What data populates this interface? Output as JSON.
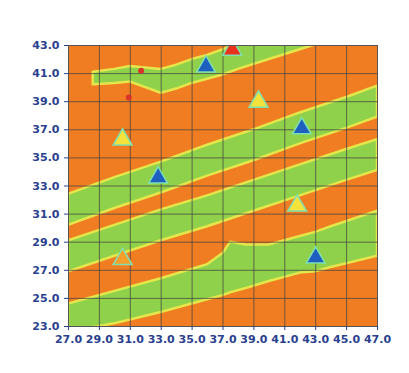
{
  "chart_data": {
    "type": "map",
    "color": "#f07d22",
    "grid": true,
    "xlim": [
      27,
      47
    ],
    "ylim": [
      23,
      43
    ],
    "xticks": [
      {
        "value": 27,
        "label": "27.0"
      },
      {
        "value": 29,
        "label": "29.0"
      },
      {
        "value": 31,
        "label": "31.0"
      },
      {
        "value": 33,
        "label": "33.0"
      },
      {
        "value": 35,
        "label": "35.0"
      },
      {
        "value": 37,
        "label": "37.0"
      },
      {
        "value": 39,
        "label": "39.0"
      },
      {
        "value": 41,
        "label": "41.0"
      },
      {
        "value": 43,
        "label": "43.0"
      },
      {
        "value": 45,
        "label": "45.0"
      },
      {
        "value": 47,
        "label": "47.0"
      }
    ],
    "yticks": [
      {
        "value": 23,
        "label": "23.0"
      },
      {
        "value": 25,
        "label": "25.0"
      },
      {
        "value": 27,
        "label": "27.0"
      },
      {
        "value": 29,
        "label": "29.0"
      },
      {
        "value": 31,
        "label": "31.0"
      },
      {
        "value": 33,
        "label": "33.0"
      },
      {
        "value": 35,
        "label": "35.0"
      },
      {
        "value": 37,
        "label": "37.0"
      },
      {
        "value": 39,
        "label": "39.0"
      },
      {
        "value": 41,
        "label": "41.0"
      },
      {
        "value": 43,
        "label": "43.0"
      }
    ],
    "series": [
      {
        "type": "area",
        "color": "#8fd14a",
        "x": [
          28.6,
          30,
          31,
          32,
          33,
          34,
          35,
          36,
          37,
          38,
          40,
          42,
          44
        ],
        "y_low": [
          40.2,
          40.3,
          40.4,
          40.0,
          39.6,
          39.9,
          40.3,
          40.6,
          40.9,
          41.3,
          42.0,
          42.7,
          43.4
        ],
        "y_high": [
          41.1,
          41.3,
          41.5,
          41.4,
          41.3,
          41.6,
          42.0,
          42.3,
          42.7,
          43.1,
          43.8,
          44.5,
          45.2
        ]
      },
      {
        "type": "area",
        "color": "#8fd14a",
        "x": [
          27,
          30,
          33,
          36,
          39,
          42,
          45,
          47
        ],
        "y_low": [
          30.2,
          31.4,
          32.5,
          33.7,
          34.8,
          36.0,
          37.1,
          37.9
        ],
        "y_high": [
          32.4,
          33.6,
          34.7,
          35.9,
          37.0,
          38.2,
          39.3,
          40.1
        ]
      },
      {
        "type": "area",
        "color": "#8fd14a",
        "x": [
          27,
          30,
          33,
          36,
          39,
          42,
          45,
          47
        ],
        "y_low": [
          26.9,
          28.0,
          29.1,
          30.1,
          31.2,
          32.3,
          33.4,
          34.1
        ],
        "y_high": [
          29.1,
          30.2,
          31.3,
          32.3,
          33.4,
          34.5,
          35.6,
          36.3
        ]
      },
      {
        "type": "area",
        "color": "#8fd14a",
        "x": [
          27,
          30,
          33,
          36,
          37,
          37.5,
          38.5,
          40,
          42,
          43,
          44,
          47
        ],
        "y_low": [
          22.6,
          23.2,
          24.0,
          24.9,
          25.2,
          25.4,
          25.7,
          26.2,
          26.8,
          26.9,
          27.2,
          28.0
        ],
        "y_high": [
          24.6,
          25.5,
          26.4,
          27.4,
          28.2,
          29.0,
          28.8,
          28.8,
          29.4,
          29.7,
          30.1,
          31.2
        ]
      },
      {
        "type": "scatter",
        "marker": "triangle",
        "color": "#1f5fbf",
        "x": [
          32.8,
          42.1,
          35.9,
          43.0
        ],
        "y": [
          33.6,
          37.1,
          41.5,
          27.9
        ]
      },
      {
        "type": "scatter",
        "marker": "triangle",
        "color": "#f5e23a",
        "x": [
          30.5,
          39.3,
          41.8
        ],
        "y": [
          36.3,
          39.0,
          31.6
        ]
      },
      {
        "type": "scatter",
        "marker": "triangle",
        "color": "#f5a02a",
        "x": [
          30.5
        ],
        "y": [
          27.8
        ]
      },
      {
        "type": "scatter",
        "marker": "triangle",
        "color": "#e8321e",
        "x": [
          37.6
        ],
        "y": [
          42.7
        ]
      },
      {
        "type": "scatter",
        "marker": "circle",
        "color": "#d8342a",
        "x": [
          31.7,
          30.9
        ],
        "y": [
          41.2,
          39.3
        ]
      }
    ]
  }
}
